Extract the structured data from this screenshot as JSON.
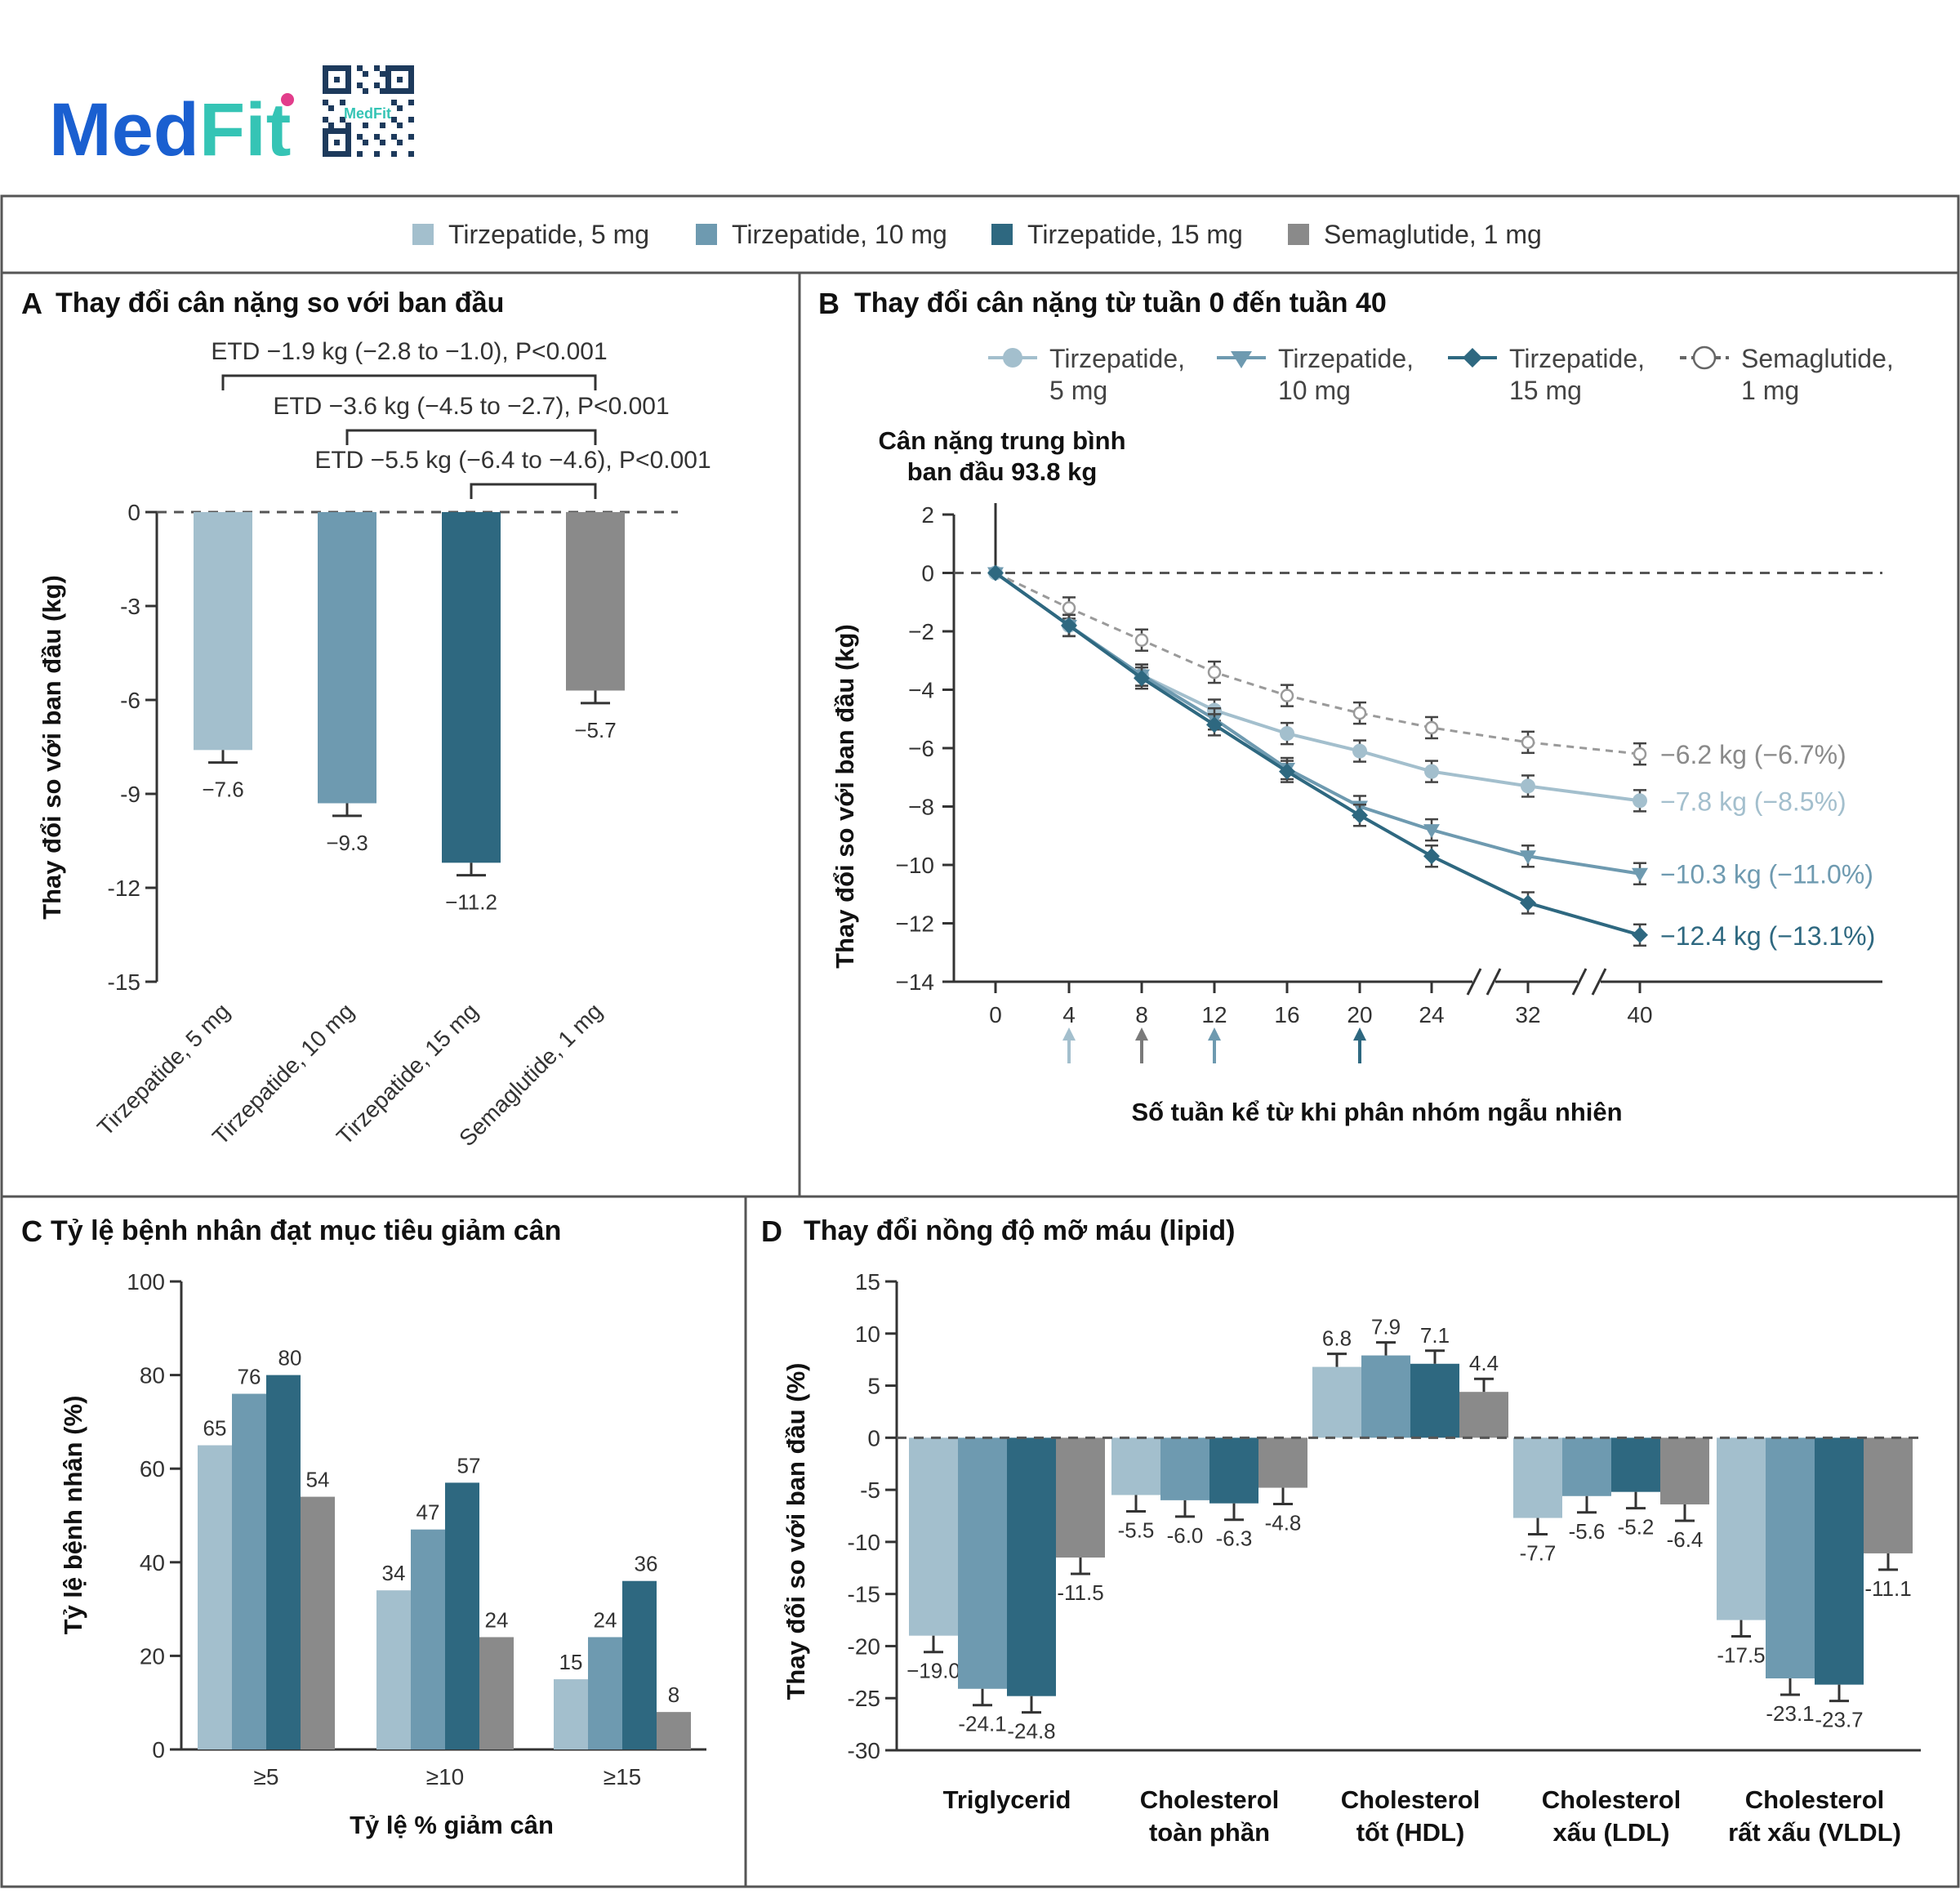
{
  "brand": {
    "name_part1": "Med",
    "name_part2": "Fit",
    "qr_text": "MedFit",
    "blue": "#1a5fd0",
    "teal": "#35c4b5",
    "pink": "#e23d8b"
  },
  "colors": {
    "t5": "#a3bfcd",
    "t10": "#6e9ab0",
    "t15": "#2e6880",
    "sema": "#8a8a8a"
  },
  "legend": {
    "items": [
      "Tirzepatide, 5 mg",
      "Tirzepatide, 10 mg",
      "Tirzepatide, 15 mg",
      "Semaglutide, 1 mg"
    ]
  },
  "panels": {
    "a": {
      "letter": "A",
      "title": "Thay đổi cân nặng so với ban đầu"
    },
    "b": {
      "letter": "B",
      "title": "Thay đổi cân nặng từ tuần 0 đến tuần 40"
    },
    "c": {
      "letter": "C",
      "title": "Tỷ lệ bệnh nhân đạt mục tiêu giảm cân"
    },
    "d": {
      "letter": "D",
      "title": "Thay đổi nồng độ mỡ máu (lipid)"
    }
  },
  "chart_data": [
    {
      "id": "A",
      "type": "bar",
      "title": "Thay đổi cân nặng so với ban đầu",
      "ylabel": "Thay đổi so với ban đầu (kg)",
      "xlabel": "",
      "ylim": [
        -15,
        0
      ],
      "yticks": [
        0,
        -3,
        -6,
        -9,
        -12,
        -15
      ],
      "ytick_labels": [
        "0",
        "-3",
        "-6",
        "-9",
        "-12",
        "-15"
      ],
      "categories": [
        "Tirzepatide, 5 mg",
        "Tirzepatide, 10 mg",
        "Tirzepatide, 15 mg",
        "Semaglutide, 1 mg"
      ],
      "values": [
        -7.6,
        -9.3,
        -11.2,
        -5.7
      ],
      "value_labels": [
        "−7.6",
        "−9.3",
        "−11.2",
        "−5.7"
      ],
      "errors": [
        0.4,
        0.4,
        0.4,
        0.4
      ],
      "comparisons": [
        {
          "text": "ETD −1.9 kg (−2.8 to −1.0), P<0.001",
          "from": 0,
          "to": 3
        },
        {
          "text": "ETD −3.6 kg (−4.5 to −2.7), P<0.001",
          "from": 1,
          "to": 3
        },
        {
          "text": "ETD −5.5 kg (−6.4 to −4.6), P<0.001",
          "from": 2,
          "to": 3
        }
      ]
    },
    {
      "id": "B",
      "type": "line",
      "title": "Thay đổi cân nặng từ tuần 0 đến tuần 40",
      "ylabel": "Thay đổi so với ban đầu (kg)",
      "xlabel": "Số tuần kể từ khi phân nhóm ngẫu nhiên",
      "ylim": [
        -14,
        2
      ],
      "yticks": [
        2,
        0,
        -2,
        -4,
        -6,
        -8,
        -10,
        -12,
        -14
      ],
      "ytick_labels": [
        "2",
        "0",
        "−2",
        "−4",
        "−6",
        "−8",
        "−10",
        "−12",
        "−14"
      ],
      "x": [
        0,
        4,
        8,
        12,
        16,
        20,
        24,
        32,
        40
      ],
      "x_labels": [
        "0",
        "4",
        "8",
        "12",
        "16",
        "20",
        "24",
        "32",
        "40"
      ],
      "axis_breaks": [
        "24-32",
        "32-40"
      ],
      "baseline_note": "Cân nặng trung bình ban đầu 93.8 kg",
      "baseline_note_lines": [
        "Cân nặng trung bình",
        "ban đầu 93.8 kg"
      ],
      "arrows": [
        {
          "x": 4,
          "series": "t5"
        },
        {
          "x": 8,
          "series": "sema"
        },
        {
          "x": 12,
          "series": "t10"
        },
        {
          "x": 20,
          "series": "t15"
        }
      ],
      "series": [
        {
          "key": "t5",
          "legend_lines": [
            "Tirzepatide,",
            "5 mg"
          ],
          "marker": "circle",
          "values": [
            0,
            -1.8,
            -3.5,
            -4.7,
            -5.5,
            -6.1,
            -6.8,
            -7.3,
            -7.8
          ],
          "end_label": "−7.8 kg (−8.5%)"
        },
        {
          "key": "t10",
          "legend_lines": [
            "Tirzepatide,",
            "10 mg"
          ],
          "marker": "triangle",
          "values": [
            0,
            -1.8,
            -3.5,
            -5.0,
            -6.7,
            -8.0,
            -8.8,
            -9.7,
            -10.3
          ],
          "end_label": "−10.3 kg (−11.0%)"
        },
        {
          "key": "t15",
          "legend_lines": [
            "Tirzepatide,",
            "15 mg"
          ],
          "marker": "diamond",
          "values": [
            0,
            -1.8,
            -3.6,
            -5.2,
            -6.8,
            -8.3,
            -9.7,
            -11.3,
            -12.4
          ],
          "end_label": "−12.4 kg (−13.1%)"
        },
        {
          "key": "sema",
          "legend_lines": [
            "Semaglutide,",
            "1 mg"
          ],
          "marker": "open-circle",
          "values": [
            0,
            -1.2,
            -2.3,
            -3.4,
            -4.2,
            -4.8,
            -5.3,
            -5.8,
            -6.2
          ],
          "end_label": "−6.2 kg (−6.7%)"
        }
      ]
    },
    {
      "id": "C",
      "type": "bar",
      "title": "Tỷ lệ bệnh nhân đạt mục tiêu giảm cân",
      "ylabel": "Tỷ lệ bệnh nhân (%)",
      "xlabel": "Tỷ lệ % giảm cân",
      "ylim": [
        0,
        100
      ],
      "yticks": [
        0,
        20,
        40,
        60,
        80,
        100
      ],
      "ytick_labels": [
        "0",
        "20",
        "40",
        "60",
        "80",
        "100"
      ],
      "categories": [
        "≥5",
        "≥10",
        "≥15"
      ],
      "series": [
        {
          "name": "Tirzepatide, 5 mg",
          "key": "t5",
          "values": [
            65,
            34,
            15
          ]
        },
        {
          "name": "Tirzepatide, 10 mg",
          "key": "t10",
          "values": [
            76,
            47,
            24
          ]
        },
        {
          "name": "Tirzepatide, 15 mg",
          "key": "t15",
          "values": [
            80,
            57,
            36
          ]
        },
        {
          "name": "Semaglutide, 1 mg",
          "key": "sema",
          "values": [
            54,
            24,
            8
          ]
        }
      ]
    },
    {
      "id": "D",
      "type": "bar",
      "title": "Thay đổi nồng độ mỡ máu (lipid)",
      "ylabel": "Thay đổi so với ban đầu (%)",
      "xlabel": "",
      "ylim": [
        -30,
        15
      ],
      "yticks": [
        15,
        10,
        5,
        0,
        -5,
        -10,
        -15,
        -20,
        -25,
        -30
      ],
      "ytick_labels": [
        "15",
        "10",
        "5",
        "0",
        "-5",
        "-10",
        "-15",
        "-20",
        "-25",
        "-30"
      ],
      "categories": [
        "Triglycerid",
        "Cholesterol toàn phần",
        "Cholesterol tốt (HDL)",
        "Cholesterol xấu (LDL)",
        "Cholesterol rất xấu (VLDL)"
      ],
      "category_lines": [
        [
          "Triglycerid"
        ],
        [
          "Cholesterol",
          "toàn phần"
        ],
        [
          "Cholesterol",
          "tốt (HDL)"
        ],
        [
          "Cholesterol",
          "xấu (LDL)"
        ],
        [
          "Cholesterol",
          "rất xấu (VLDL)"
        ]
      ],
      "series": [
        {
          "name": "Tirzepatide, 5 mg",
          "key": "t5",
          "values": [
            -19.0,
            -5.5,
            6.8,
            -7.7,
            -17.5
          ],
          "labels": [
            "−19.0",
            "-5.5",
            "6.8",
            "-7.7",
            "-17.5"
          ]
        },
        {
          "name": "Tirzepatide, 10 mg",
          "key": "t10",
          "values": [
            -24.1,
            -6.0,
            7.9,
            -5.6,
            -23.1
          ],
          "labels": [
            "-24.1",
            "-6.0",
            "7.9",
            "-5.6",
            "-23.1"
          ]
        },
        {
          "name": "Tirzepatide, 15 mg",
          "key": "t15",
          "values": [
            -24.8,
            -6.3,
            7.1,
            -5.2,
            -23.7
          ],
          "labels": [
            "-24.8",
            "-6.3",
            "7.1",
            "-5.2",
            "-23.7"
          ]
        },
        {
          "name": "Semaglutide, 1 mg",
          "key": "sema",
          "values": [
            -11.5,
            -4.8,
            4.4,
            -6.4,
            -11.1
          ],
          "labels": [
            "-11.5",
            "-4.8",
            "4.4",
            "-6.4",
            "-11.1"
          ]
        }
      ]
    }
  ]
}
